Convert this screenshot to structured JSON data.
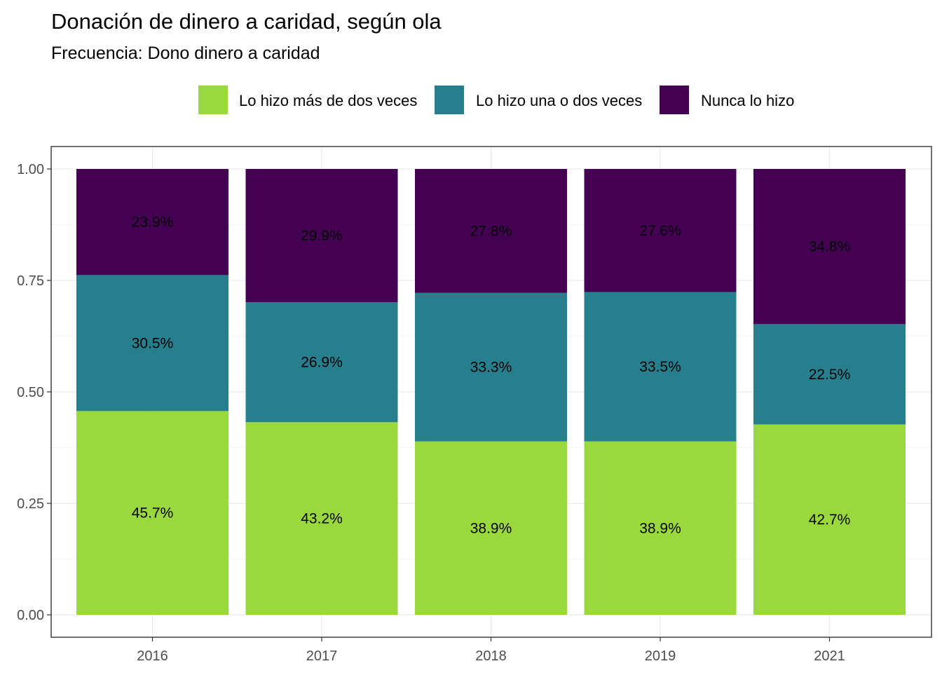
{
  "chart_data": {
    "type": "bar",
    "stacked": true,
    "title": "Donación de dinero a caridad, según ola",
    "subtitle": "Frecuencia: Dono dinero a caridad",
    "xlabel": "",
    "ylabel": "",
    "categories": [
      "2016",
      "2017",
      "2018",
      "2019",
      "2021"
    ],
    "ylim": [
      0,
      1
    ],
    "yticks": [
      0,
      0.25,
      0.5,
      0.75,
      1
    ],
    "ytick_labels": [
      "0.00",
      "0.25",
      "0.50",
      "0.75",
      "1.00"
    ],
    "grid": true,
    "legend_position": "top",
    "series": [
      {
        "name": "Lo hizo más de dos veces",
        "color": "#9ad93d",
        "values": [
          0.457,
          0.432,
          0.389,
          0.389,
          0.427
        ],
        "labels": [
          "45.7%",
          "43.2%",
          "38.9%",
          "38.9%",
          "42.7%"
        ]
      },
      {
        "name": "Lo hizo una o dos veces",
        "color": "#277f8e",
        "values": [
          0.305,
          0.269,
          0.333,
          0.335,
          0.225
        ],
        "labels": [
          "30.5%",
          "26.9%",
          "33.3%",
          "33.5%",
          "22.5%"
        ]
      },
      {
        "name": "Nunca lo hizo",
        "color": "#440154",
        "values": [
          0.239,
          0.299,
          0.278,
          0.276,
          0.348
        ],
        "labels": [
          "23.9%",
          "29.9%",
          "27.8%",
          "27.6%",
          "34.8%"
        ]
      }
    ]
  }
}
